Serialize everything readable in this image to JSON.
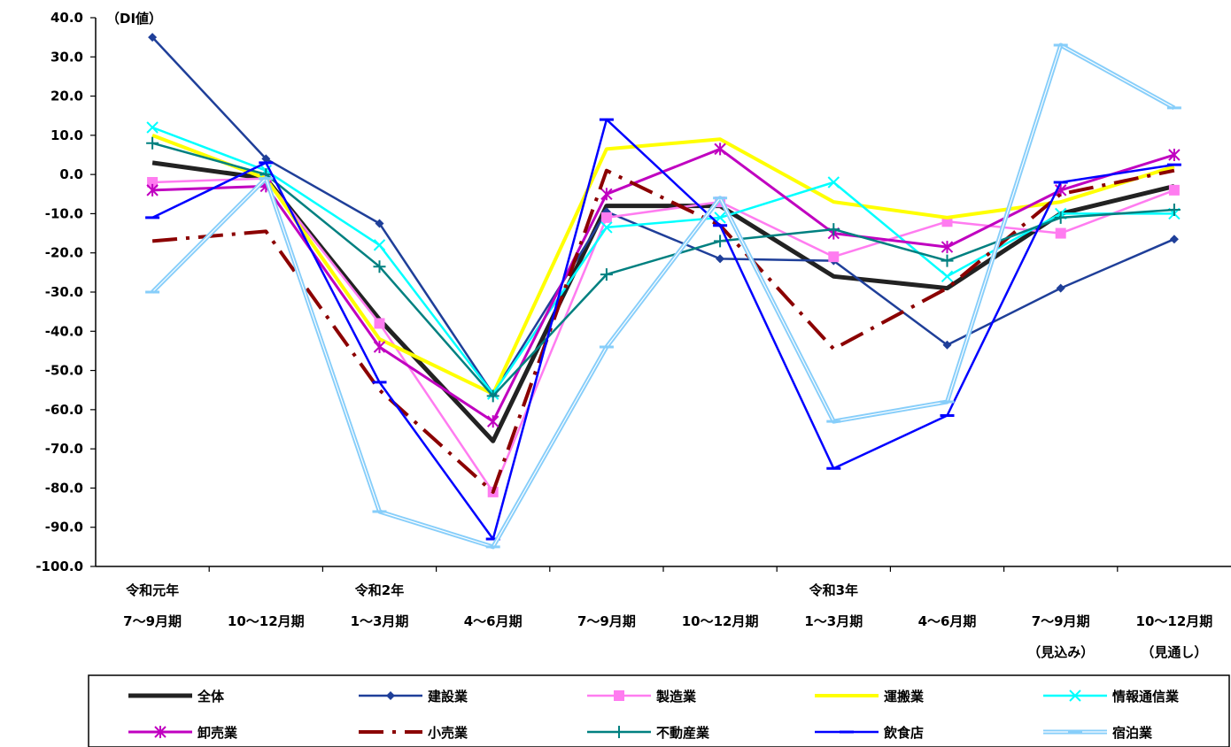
{
  "chart_data": {
    "type": "line",
    "ylabel": "（DI値）",
    "ylim": [
      -100,
      40
    ],
    "yticks": [
      "40.0",
      "30.0",
      "20.0",
      "10.0",
      "0.0",
      "-10.0",
      "-20.0",
      "-30.0",
      "-40.0",
      "-50.0",
      "-60.0",
      "-70.0",
      "-80.0",
      "-90.0",
      "-100.0"
    ],
    "categories": [
      [
        "令和元年",
        "7～9月期",
        ""
      ],
      [
        "",
        "10～12月期",
        ""
      ],
      [
        "令和2年",
        "1～3月期",
        ""
      ],
      [
        "",
        "4～6月期",
        ""
      ],
      [
        "",
        "7～9月期",
        ""
      ],
      [
        "",
        "10～12月期",
        ""
      ],
      [
        "令和3年",
        "1～3月期",
        ""
      ],
      [
        "",
        "4～6月期",
        ""
      ],
      [
        "",
        "7～9月期",
        "（見込み）"
      ],
      [
        "",
        "10～12月期",
        "（見通し）"
      ]
    ],
    "grid": false,
    "legend_position": "bottom",
    "series": [
      {
        "name": "全体",
        "color": "#222222",
        "marker": "none",
        "dash": "solid",
        "width": 5,
        "values": [
          3,
          -1,
          -37,
          -68,
          -8,
          -8,
          -26,
          -29,
          -10,
          -3
        ]
      },
      {
        "name": "建設業",
        "color": "#1f3f99",
        "marker": "diamond",
        "dash": "solid",
        "width": 2.5,
        "values": [
          35,
          4,
          -12.5,
          -56,
          -9.5,
          -21.5,
          -22,
          -43.5,
          -29,
          -16.5
        ]
      },
      {
        "name": "製造業",
        "color": "#ff7cf0",
        "marker": "square",
        "dash": "solid",
        "width": 2.5,
        "values": [
          -2,
          -1,
          -38,
          -81,
          -11,
          -7,
          -21,
          -12,
          -15,
          -4
        ]
      },
      {
        "name": "運搬業",
        "color": "#ffff00",
        "marker": "none",
        "dash": "solid",
        "width": 4,
        "values": [
          10,
          -1,
          -42,
          -56,
          6.5,
          9,
          -7,
          -11,
          -7,
          2
        ]
      },
      {
        "name": "情報通信業",
        "color": "#00ffff",
        "marker": "x",
        "dash": "solid",
        "width": 2.5,
        "values": [
          12,
          1,
          -18,
          -56,
          -13.5,
          -11,
          -2,
          -26,
          -10,
          -10
        ]
      },
      {
        "name": "卸売業",
        "color": "#c000c0",
        "marker": "star",
        "dash": "solid",
        "width": 3,
        "values": [
          -4,
          -3,
          -44,
          -63,
          -5,
          6.5,
          -15,
          -18.5,
          -4,
          5
        ]
      },
      {
        "name": "小売業",
        "color": "#8b0000",
        "marker": "none",
        "dash": "dashdot",
        "width": 4,
        "values": [
          -17,
          -14.5,
          -55,
          -81,
          1,
          -13,
          -44.5,
          -29,
          -5,
          1
        ]
      },
      {
        "name": "不動産業",
        "color": "#008080",
        "marker": "plus",
        "dash": "solid",
        "width": 2.5,
        "values": [
          8,
          0,
          -23.5,
          -56.5,
          -25.5,
          -17,
          -14,
          -22,
          -11,
          -9
        ]
      },
      {
        "name": "飲食店",
        "color": "#0000ff",
        "marker": "dash",
        "dash": "solid",
        "width": 2.5,
        "values": [
          -11,
          3,
          -53,
          -93,
          14,
          -13,
          -75,
          -61.5,
          -2,
          2.5
        ]
      },
      {
        "name": "宿泊業",
        "color": "#87cefa",
        "marker": "dash",
        "dash": "double",
        "width": 5,
        "values": [
          -30,
          -1,
          -86,
          -95,
          -44,
          -6,
          -63,
          -58,
          33,
          17
        ]
      }
    ]
  }
}
